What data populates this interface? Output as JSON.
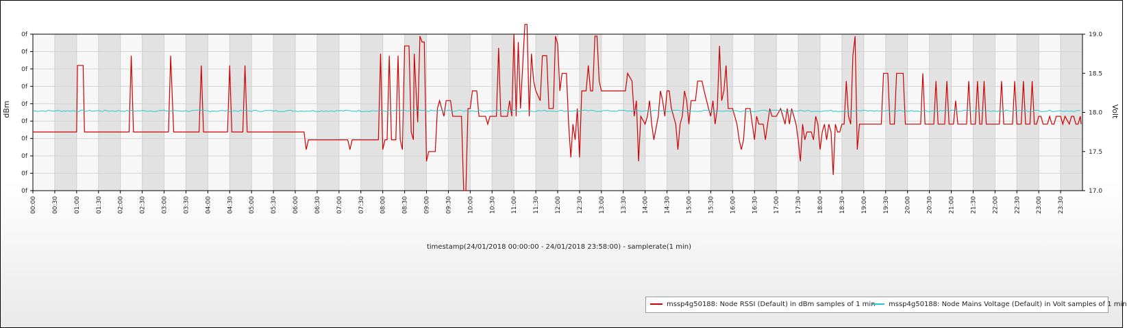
{
  "chart_data": {
    "type": "line",
    "xlabel": "timestamp(24/01/2018 00:00:00 - 24/01/2018 23:58:00) - samplerate(1 min)",
    "ylabel_left": "dBm",
    "ylabel_right": "Volt",
    "x_tick_labels": [
      "00:00",
      "00:30",
      "01:00",
      "01:30",
      "02:00",
      "02:30",
      "03:00",
      "03:30",
      "04:00",
      "04:30",
      "05:00",
      "05:30",
      "06:00",
      "06:30",
      "07:00",
      "07:30",
      "08:00",
      "08:30",
      "09:00",
      "09:30",
      "10:00",
      "10:30",
      "11:00",
      "11:30",
      "12:00",
      "12:30",
      "13:00",
      "13:30",
      "14:00",
      "14:30",
      "15:00",
      "15:30",
      "16:00",
      "16:30",
      "17:00",
      "17:30",
      "18:00",
      "18:30",
      "19:00",
      "19:30",
      "20:00",
      "20:30",
      "21:00",
      "21:30",
      "22:00",
      "22:30",
      "23:00",
      "23:30"
    ],
    "y_left_tick_labels": [
      "0f",
      "0f",
      "0f",
      "0f",
      "0f",
      "0f",
      "0f",
      "0f",
      "0f",
      "0f"
    ],
    "y_right_ticks": [
      "17.0",
      "17.5",
      "18.0",
      "18.5",
      "19.0"
    ],
    "y_right_range": [
      17.0,
      19.0
    ],
    "grid": true,
    "alternating_bands": true,
    "legend_position": "bottom-right",
    "series": [
      {
        "name": "mssp4g50188: Node RSSI (Default) in dBm samples of 1 min",
        "color": "#cc0000",
        "axis": "left",
        "points_hours_level": [
          [
            0,
            3
          ],
          [
            1.0,
            3
          ],
          [
            1.02,
            6.4
          ],
          [
            1.15,
            6.4
          ],
          [
            1.18,
            3
          ],
          [
            2.2,
            3
          ],
          [
            2.25,
            6.9
          ],
          [
            2.3,
            3
          ],
          [
            3.1,
            3
          ],
          [
            3.15,
            6.9
          ],
          [
            3.22,
            3
          ],
          [
            3.8,
            3
          ],
          [
            3.85,
            6.4
          ],
          [
            3.9,
            3
          ],
          [
            4.45,
            3
          ],
          [
            4.5,
            6.4
          ],
          [
            4.55,
            3
          ],
          [
            4.8,
            3
          ],
          [
            4.85,
            6.4
          ],
          [
            4.9,
            3
          ],
          [
            6.2,
            3
          ],
          [
            6.25,
            2.1
          ],
          [
            6.3,
            2.6
          ],
          [
            7.2,
            2.6
          ],
          [
            7.25,
            2.1
          ],
          [
            7.3,
            2.6
          ],
          [
            7.9,
            2.6
          ],
          [
            7.95,
            7.0
          ],
          [
            8.0,
            2.1
          ],
          [
            8.05,
            2.6
          ],
          [
            8.1,
            2.6
          ],
          [
            8.15,
            6.9
          ],
          [
            8.2,
            2.6
          ],
          [
            8.3,
            2.6
          ],
          [
            8.35,
            6.9
          ],
          [
            8.4,
            2.6
          ],
          [
            8.45,
            2.1
          ],
          [
            8.5,
            7.4
          ],
          [
            8.6,
            7.4
          ],
          [
            8.65,
            3
          ],
          [
            8.7,
            2.6
          ],
          [
            8.72,
            7.0
          ],
          [
            8.8,
            3.5
          ],
          [
            8.85,
            7.9
          ],
          [
            8.9,
            7.6
          ],
          [
            8.95,
            7.6
          ],
          [
            9.0,
            1.5
          ],
          [
            9.05,
            2.0
          ],
          [
            9.2,
            2.0
          ],
          [
            9.25,
            4.2
          ],
          [
            9.3,
            4.6
          ],
          [
            9.35,
            4.2
          ],
          [
            9.4,
            3.8
          ],
          [
            9.45,
            4.6
          ],
          [
            9.55,
            4.6
          ],
          [
            9.6,
            3.8
          ],
          [
            9.8,
            3.8
          ],
          [
            9.85,
            0
          ],
          [
            9.9,
            0
          ],
          [
            9.95,
            4.2
          ],
          [
            10.0,
            4.2
          ],
          [
            10.05,
            5.1
          ],
          [
            10.15,
            5.1
          ],
          [
            10.2,
            3.8
          ],
          [
            10.35,
            3.8
          ],
          [
            10.4,
            3.4
          ],
          [
            10.45,
            3.8
          ],
          [
            10.6,
            3.8
          ],
          [
            10.65,
            7.3
          ],
          [
            10.7,
            3.8
          ],
          [
            10.85,
            3.8
          ],
          [
            10.9,
            4.6
          ],
          [
            10.95,
            3.8
          ],
          [
            11.0,
            8.0
          ],
          [
            11.05,
            3.8
          ],
          [
            11.1,
            7.6
          ],
          [
            11.15,
            4.2
          ],
          [
            11.25,
            8.5
          ],
          [
            11.3,
            8.5
          ],
          [
            11.35,
            3.8
          ],
          [
            11.4,
            7.0
          ],
          [
            11.45,
            5.6
          ],
          [
            11.5,
            5.1
          ],
          [
            11.6,
            4.6
          ],
          [
            11.65,
            6.9
          ],
          [
            11.75,
            6.9
          ],
          [
            11.8,
            4.2
          ],
          [
            11.9,
            4.2
          ],
          [
            11.95,
            7.9
          ],
          [
            12.0,
            7.5
          ],
          [
            12.05,
            5.1
          ],
          [
            12.1,
            6.0
          ],
          [
            12.2,
            6.0
          ],
          [
            12.25,
            3.4
          ],
          [
            12.3,
            1.7
          ],
          [
            12.35,
            3.4
          ],
          [
            12.4,
            2.6
          ],
          [
            12.45,
            4.2
          ],
          [
            12.5,
            1.7
          ],
          [
            12.55,
            5.1
          ],
          [
            12.65,
            5.1
          ],
          [
            12.7,
            6.4
          ],
          [
            12.75,
            5.1
          ],
          [
            12.8,
            5.1
          ],
          [
            12.85,
            7.9
          ],
          [
            12.9,
            7.9
          ],
          [
            12.95,
            5.6
          ],
          [
            13.0,
            5.1
          ],
          [
            13.5,
            5.1
          ],
          [
            13.55,
            5.1
          ],
          [
            13.6,
            6.0
          ],
          [
            13.7,
            5.6
          ],
          [
            13.75,
            3.8
          ],
          [
            13.8,
            4.6
          ],
          [
            13.85,
            1.5
          ],
          [
            13.9,
            3.8
          ],
          [
            14.0,
            3.4
          ],
          [
            14.05,
            3.8
          ],
          [
            14.1,
            4.6
          ],
          [
            14.15,
            3.4
          ],
          [
            14.2,
            2.6
          ],
          [
            14.3,
            3.8
          ],
          [
            14.35,
            5.1
          ],
          [
            14.4,
            4.6
          ],
          [
            14.45,
            3.8
          ],
          [
            14.5,
            5.1
          ],
          [
            14.55,
            5.1
          ],
          [
            14.6,
            4.2
          ],
          [
            14.7,
            3.4
          ],
          [
            14.75,
            2.1
          ],
          [
            14.8,
            3.4
          ],
          [
            14.85,
            3.8
          ],
          [
            14.9,
            5.1
          ],
          [
            14.95,
            4.6
          ],
          [
            15.0,
            3.4
          ],
          [
            15.05,
            4.6
          ],
          [
            15.15,
            4.6
          ],
          [
            15.2,
            5.6
          ],
          [
            15.3,
            5.6
          ],
          [
            15.35,
            5.1
          ],
          [
            15.45,
            4.2
          ],
          [
            15.5,
            3.8
          ],
          [
            15.55,
            4.6
          ],
          [
            15.6,
            3.4
          ],
          [
            15.65,
            4.2
          ],
          [
            15.7,
            7.4
          ],
          [
            15.75,
            4.6
          ],
          [
            15.8,
            5.1
          ],
          [
            15.85,
            6.4
          ],
          [
            15.9,
            4.2
          ],
          [
            16.0,
            4.2
          ],
          [
            16.05,
            3.8
          ],
          [
            16.1,
            3.4
          ],
          [
            16.15,
            2.6
          ],
          [
            16.2,
            2.1
          ],
          [
            16.25,
            2.6
          ],
          [
            16.3,
            4.2
          ],
          [
            16.4,
            4.2
          ],
          [
            16.45,
            3.4
          ],
          [
            16.5,
            2.6
          ],
          [
            16.55,
            3.8
          ],
          [
            16.6,
            3.4
          ],
          [
            16.7,
            3.4
          ],
          [
            16.75,
            2.6
          ],
          [
            16.8,
            3.4
          ],
          [
            16.85,
            4.2
          ],
          [
            16.9,
            3.8
          ],
          [
            17.0,
            3.8
          ],
          [
            17.1,
            4.2
          ],
          [
            17.15,
            3.8
          ],
          [
            17.2,
            3.4
          ],
          [
            17.25,
            4.2
          ],
          [
            17.3,
            3.4
          ],
          [
            17.35,
            4.2
          ],
          [
            17.4,
            3.8
          ],
          [
            17.45,
            3.4
          ],
          [
            17.5,
            2.6
          ],
          [
            17.55,
            1.5
          ],
          [
            17.6,
            3.4
          ],
          [
            17.65,
            2.6
          ],
          [
            17.7,
            3.0
          ],
          [
            17.8,
            3.0
          ],
          [
            17.85,
            2.6
          ],
          [
            17.9,
            3.8
          ],
          [
            17.95,
            3.4
          ],
          [
            18.0,
            2.1
          ],
          [
            18.05,
            3.0
          ],
          [
            18.1,
            3.4
          ],
          [
            18.15,
            2.6
          ],
          [
            18.2,
            3.4
          ],
          [
            18.25,
            3.0
          ],
          [
            18.3,
            0.8
          ],
          [
            18.35,
            3.4
          ],
          [
            18.4,
            3.0
          ],
          [
            18.45,
            3.0
          ],
          [
            18.5,
            3.4
          ],
          [
            18.55,
            3.4
          ],
          [
            18.6,
            5.6
          ],
          [
            18.65,
            3.8
          ],
          [
            18.7,
            3.4
          ],
          [
            18.75,
            6.9
          ],
          [
            18.8,
            7.9
          ],
          [
            18.85,
            2.1
          ],
          [
            18.9,
            3.4
          ],
          [
            19.0,
            3.4
          ],
          [
            19.4,
            3.4
          ],
          [
            19.45,
            6.0
          ],
          [
            19.55,
            6.0
          ],
          [
            19.6,
            3.4
          ],
          [
            19.7,
            3.4
          ],
          [
            19.75,
            6.0
          ],
          [
            19.9,
            6.0
          ],
          [
            19.95,
            3.4
          ],
          [
            20.0,
            3.4
          ],
          [
            20.3,
            3.4
          ],
          [
            20.35,
            6.0
          ],
          [
            20.4,
            3.4
          ],
          [
            20.6,
            3.4
          ],
          [
            20.65,
            5.6
          ],
          [
            20.7,
            3.4
          ],
          [
            20.85,
            3.4
          ],
          [
            20.9,
            5.6
          ],
          [
            20.95,
            3.4
          ],
          [
            21.05,
            3.4
          ],
          [
            21.1,
            4.6
          ],
          [
            21.15,
            3.4
          ],
          [
            21.35,
            3.4
          ],
          [
            21.4,
            5.6
          ],
          [
            21.45,
            3.4
          ],
          [
            21.55,
            3.4
          ],
          [
            21.6,
            5.6
          ],
          [
            21.65,
            3.4
          ],
          [
            21.7,
            3.4
          ],
          [
            21.75,
            5.6
          ],
          [
            21.8,
            3.4
          ],
          [
            22.1,
            3.4
          ],
          [
            22.15,
            5.6
          ],
          [
            22.2,
            3.4
          ],
          [
            22.4,
            3.4
          ],
          [
            22.45,
            5.6
          ],
          [
            22.5,
            3.4
          ],
          [
            22.6,
            3.4
          ],
          [
            22.65,
            5.6
          ],
          [
            22.7,
            3.4
          ],
          [
            22.8,
            3.4
          ],
          [
            22.85,
            5.6
          ],
          [
            22.9,
            3.4
          ],
          [
            22.95,
            3.4
          ],
          [
            23.0,
            3.8
          ],
          [
            23.05,
            3.8
          ],
          [
            23.1,
            3.4
          ],
          [
            23.2,
            3.4
          ],
          [
            23.25,
            3.8
          ],
          [
            23.3,
            3.4
          ],
          [
            23.35,
            3.4
          ],
          [
            23.4,
            3.8
          ],
          [
            23.5,
            3.8
          ],
          [
            23.55,
            3.4
          ],
          [
            23.6,
            3.8
          ],
          [
            23.7,
            3.4
          ],
          [
            23.75,
            3.8
          ],
          [
            23.8,
            3.8
          ],
          [
            23.85,
            3.4
          ],
          [
            23.9,
            3.4
          ],
          [
            23.95,
            3.8
          ],
          [
            23.97,
            3.4
          ]
        ]
      },
      {
        "name": "mssp4g50188: Node Mains Voltage (Default) in Volt samples of 1 min",
        "color": "#22c8d0",
        "axis": "right",
        "baseline_volts": 18.02,
        "noise_volts": 0.01
      }
    ]
  }
}
